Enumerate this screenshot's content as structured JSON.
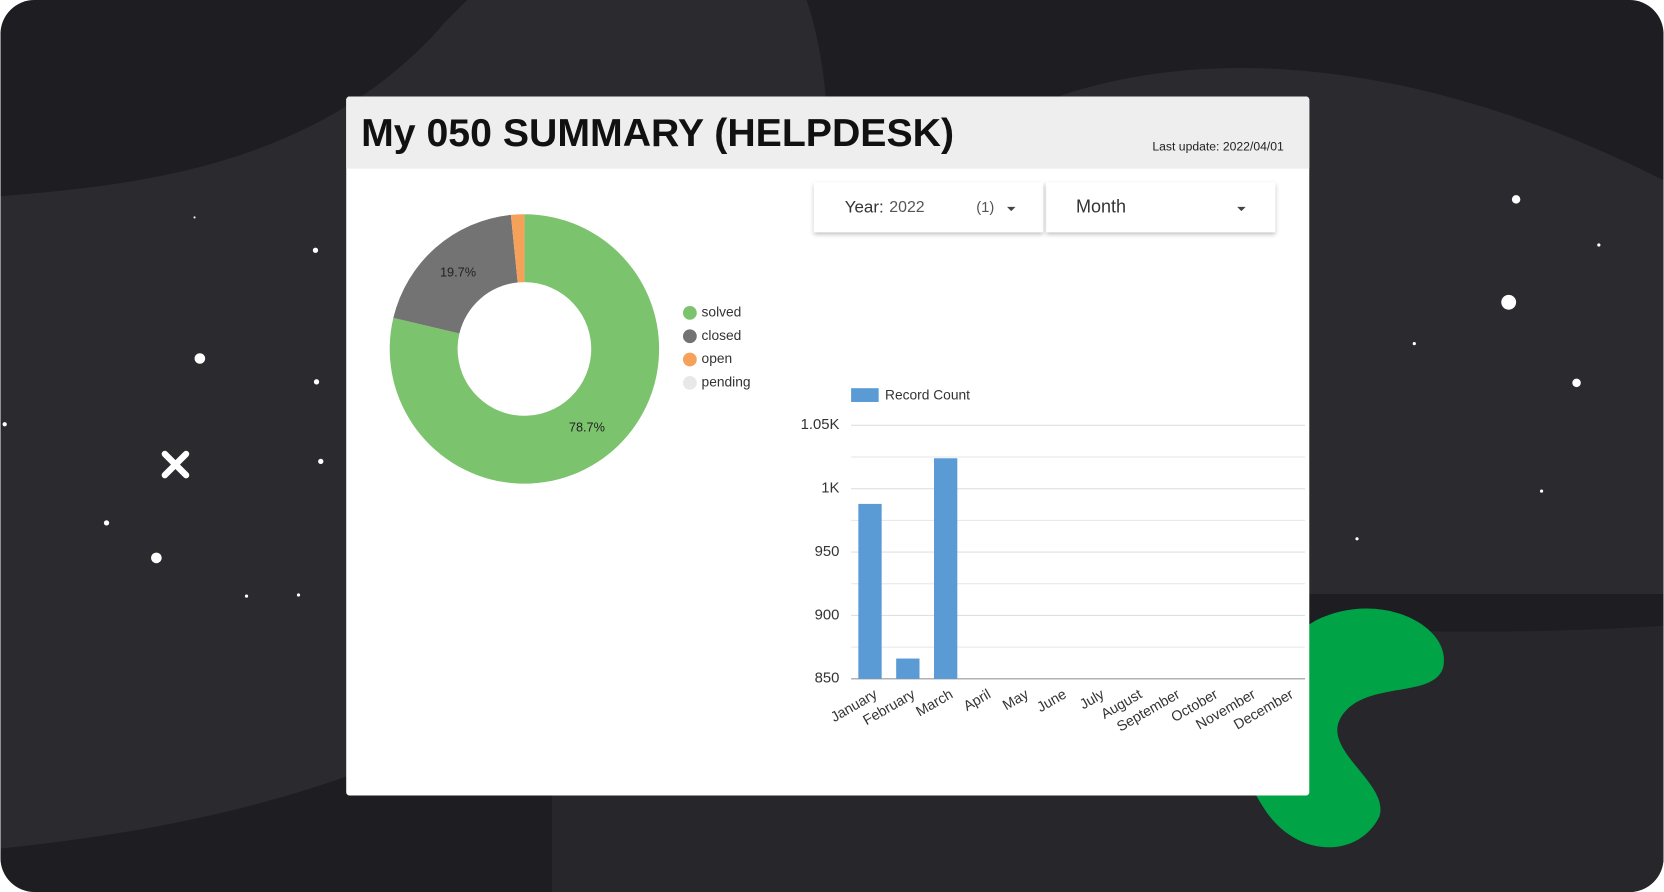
{
  "header": {
    "title": "My 050 SUMMARY (HELPDESK)",
    "last_update": "Last update: 2022/04/01"
  },
  "filters": {
    "year_label": "Year:",
    "year_value": "2022",
    "year_count": "(1)",
    "month_label": "Month"
  },
  "chart_data": [
    {
      "type": "pie",
      "categories": [
        "solved",
        "closed",
        "open",
        "pending"
      ],
      "values": [
        78.7,
        19.7,
        1.6,
        0
      ],
      "value_labels": [
        "78.7%",
        "19.7%",
        null,
        null
      ],
      "colors": [
        "#7cc36e",
        "#737373",
        "#f6a15a",
        "#e8e8e8"
      ]
    },
    {
      "type": "bar",
      "categories": [
        "January",
        "February",
        "March",
        "April",
        "May",
        "June",
        "July",
        "August",
        "September",
        "October",
        "November",
        "December"
      ],
      "series": [
        {
          "name": "Record Count",
          "color": "#5b9bd5",
          "values": [
            988,
            866,
            1024,
            null,
            null,
            null,
            null,
            null,
            null,
            null,
            null,
            null
          ]
        }
      ],
      "ylim": [
        850,
        1050
      ],
      "yticks": [
        850,
        900,
        950,
        {
          "value": 1000,
          "label": "1K"
        },
        {
          "value": 1050,
          "label": "1.05K"
        }
      ],
      "yminor": [
        875,
        925,
        975,
        1025
      ],
      "grid": true
    }
  ]
}
